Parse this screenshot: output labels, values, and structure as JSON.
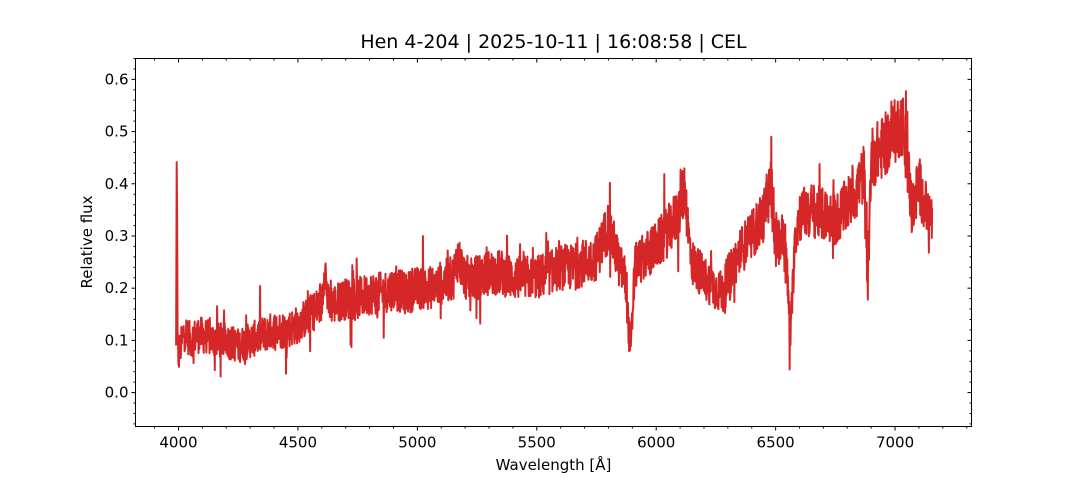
{
  "chart_data": {
    "type": "line",
    "title": "Hen 4-204 | 2025-10-11 | 16:08:58 | CEL",
    "xlabel": "Wavelength [Å]",
    "ylabel": "Relative flux",
    "xlim": [
      3820,
      7320
    ],
    "ylim": [
      -0.065,
      0.64
    ],
    "x_ticks": [
      {
        "value": 4000,
        "label": "4000"
      },
      {
        "value": 4500,
        "label": "4500"
      },
      {
        "value": 5000,
        "label": "5000"
      },
      {
        "value": 5500,
        "label": "5500"
      },
      {
        "value": 6000,
        "label": "6000"
      },
      {
        "value": 6500,
        "label": "6500"
      },
      {
        "value": 7000,
        "label": "7000"
      }
    ],
    "y_ticks": [
      {
        "value": 0.0,
        "label": "0.0"
      },
      {
        "value": 0.1,
        "label": "0.1"
      },
      {
        "value": 0.2,
        "label": "0.2"
      },
      {
        "value": 0.3,
        "label": "0.3"
      },
      {
        "value": 0.4,
        "label": "0.4"
      },
      {
        "value": 0.5,
        "label": "0.5"
      },
      {
        "value": 0.6,
        "label": "0.6"
      }
    ],
    "grid": false,
    "series": [
      {
        "color": "#d62728",
        "x": [
          3990,
          3993,
          3996,
          4000,
          4010,
          4025,
          4050,
          4075,
          4100,
          4150,
          4200,
          4250,
          4300,
          4350,
          4400,
          4450,
          4500,
          4550,
          4600,
          4612,
          4625,
          4650,
          4700,
          4750,
          4800,
          4850,
          4900,
          4950,
          5000,
          5050,
          5100,
          5150,
          5170,
          5185,
          5200,
          5250,
          5300,
          5350,
          5400,
          5450,
          5500,
          5550,
          5600,
          5650,
          5700,
          5750,
          5800,
          5850,
          5870,
          5893,
          5910,
          5950,
          6000,
          6050,
          6100,
          6120,
          6135,
          6150,
          6200,
          6250,
          6280,
          6300,
          6350,
          6400,
          6450,
          6480,
          6500,
          6520,
          6540,
          6563,
          6580,
          6600,
          6650,
          6700,
          6750,
          6800,
          6850,
          6870,
          6885,
          6900,
          6950,
          7000,
          7030,
          7050,
          7070,
          7100,
          7130,
          7155
        ],
        "y": [
          0.08,
          0.5,
          0.1,
          0.07,
          0.09,
          0.12,
          0.1,
          0.11,
          0.11,
          0.1,
          0.1,
          0.09,
          0.1,
          0.11,
          0.12,
          0.12,
          0.13,
          0.15,
          0.17,
          0.25,
          0.17,
          0.17,
          0.18,
          0.18,
          0.19,
          0.19,
          0.2,
          0.19,
          0.2,
          0.2,
          0.21,
          0.22,
          0.26,
          0.24,
          0.22,
          0.22,
          0.23,
          0.23,
          0.22,
          0.22,
          0.22,
          0.23,
          0.24,
          0.24,
          0.25,
          0.26,
          0.32,
          0.24,
          0.22,
          0.07,
          0.24,
          0.26,
          0.28,
          0.31,
          0.35,
          0.4,
          0.3,
          0.25,
          0.22,
          0.2,
          0.19,
          0.22,
          0.27,
          0.3,
          0.34,
          0.4,
          0.28,
          0.3,
          0.29,
          0.1,
          0.3,
          0.34,
          0.35,
          0.34,
          0.33,
          0.36,
          0.4,
          0.42,
          0.2,
          0.45,
          0.47,
          0.5,
          0.52,
          0.45,
          0.35,
          0.4,
          0.35,
          0.33
        ],
        "noise_amplitude": 0.045
      }
    ]
  }
}
